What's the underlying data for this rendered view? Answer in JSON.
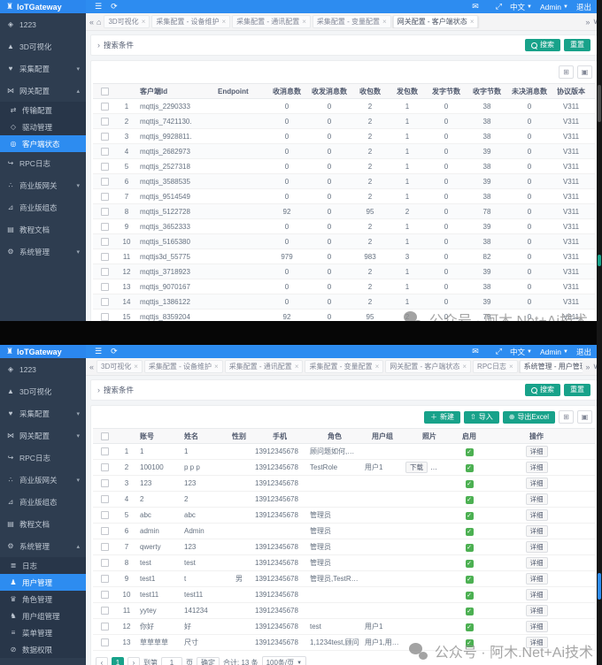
{
  "watermark": {
    "text": "公众号 · 阿木.Net+Ai技术"
  },
  "colors": {
    "primary": "#2d8cf0",
    "teal": "#18a28a",
    "enabled_green": "#4cb052",
    "sidebar": "#2e3d50"
  },
  "screens": [
    {
      "logo": "IoTGateway",
      "topbar": {
        "lang": "中文",
        "user": "Admin",
        "logout": "退出"
      },
      "tabs": [
        {
          "label": "3D可视化"
        },
        {
          "label": "采集配置 - 设备维护"
        },
        {
          "label": "采集配置 - 通讯配置"
        },
        {
          "label": "采集配置 - 变量配置"
        },
        {
          "label": "网关配置 - 客户端状态",
          "active": true
        }
      ],
      "sidebar": [
        {
          "name": "1223",
          "icon": "robot-icon",
          "label": "1223"
        },
        {
          "name": "3d-visualization",
          "icon": "cube-icon",
          "label": "3D可视化"
        },
        {
          "name": "collect-config",
          "icon": "collect-icon",
          "label": "采集配置",
          "arrow": "down"
        },
        {
          "name": "gateway-config",
          "icon": "gateway-icon",
          "label": "网关配置",
          "arrow": "up"
        },
        {
          "name": "transport-config",
          "icon": "transfer-icon",
          "label": "传输配置",
          "sub": true
        },
        {
          "name": "driver-management",
          "icon": "driver-icon",
          "label": "驱动管理",
          "sub": true
        },
        {
          "name": "client-status",
          "icon": "client-icon",
          "label": "客户端状态",
          "sub": true,
          "active": true
        },
        {
          "name": "rpc-log",
          "icon": "rpc-icon",
          "label": "RPC日志"
        },
        {
          "name": "business-gateway",
          "icon": "share-icon",
          "label": "商业版网关",
          "arrow": "down"
        },
        {
          "name": "business-scada",
          "icon": "chart-icon",
          "label": "商业版组态"
        },
        {
          "name": "tutorial-docs",
          "icon": "doc-icon",
          "label": "教程文档"
        },
        {
          "name": "system-management",
          "icon": "gear-icon",
          "label": "系统管理",
          "arrow": "down"
        }
      ],
      "search": {
        "label": "搜索条件",
        "search_btn": "搜索",
        "reset_btn": "重置"
      },
      "table": {
        "columns": [
          "客户端Id",
          "Endpoint",
          "收消息数",
          "收发消息数",
          "收包数",
          "发包数",
          "发字节数",
          "收字节数",
          "未决消息数",
          "协议版本"
        ],
        "rows": [
          [
            "mqttjs_2290333",
            "",
            "0",
            "0",
            "2",
            "1",
            "0",
            "38",
            "0",
            "V311"
          ],
          [
            "mqttjs_7421130.",
            "",
            "0",
            "0",
            "2",
            "1",
            "0",
            "38",
            "0",
            "V311"
          ],
          [
            "mqttjs_9928811.",
            "",
            "0",
            "0",
            "2",
            "1",
            "0",
            "38",
            "0",
            "V311"
          ],
          [
            "mqttjs_2682973",
            "",
            "0",
            "0",
            "2",
            "1",
            "0",
            "39",
            "0",
            "V311"
          ],
          [
            "mqttjs_2527318",
            "",
            "0",
            "0",
            "2",
            "1",
            "0",
            "38",
            "0",
            "V311"
          ],
          [
            "mqttjs_3588535",
            "",
            "0",
            "0",
            "2",
            "1",
            "0",
            "39",
            "0",
            "V311"
          ],
          [
            "mqttjs_9514549",
            "",
            "0",
            "0",
            "2",
            "1",
            "0",
            "38",
            "0",
            "V311"
          ],
          [
            "mqttjs_5122728",
            "",
            "92",
            "0",
            "95",
            "2",
            "0",
            "78",
            "0",
            "V311"
          ],
          [
            "mqttjs_3652333",
            "",
            "0",
            "0",
            "2",
            "1",
            "0",
            "39",
            "0",
            "V311"
          ],
          [
            "mqttjs_5165380",
            "",
            "0",
            "0",
            "2",
            "1",
            "0",
            "38",
            "0",
            "V311"
          ],
          [
            "mqttjs3d_55775",
            "",
            "979",
            "0",
            "983",
            "3",
            "0",
            "82",
            "0",
            "V311"
          ],
          [
            "mqttjs_3718923",
            "",
            "0",
            "0",
            "2",
            "1",
            "0",
            "39",
            "0",
            "V311"
          ],
          [
            "mqttjs_9070167",
            "",
            "0",
            "0",
            "2",
            "1",
            "0",
            "38",
            "0",
            "V311"
          ],
          [
            "mqttjs_1386122",
            "",
            "0",
            "0",
            "2",
            "1",
            "0",
            "39",
            "0",
            "V311"
          ],
          [
            "mqttjs_8359204",
            "",
            "92",
            "0",
            "95",
            "2",
            "0",
            "79",
            "0",
            "V311"
          ]
        ]
      }
    },
    {
      "logo": "IoTGateway",
      "topbar": {
        "lang": "中文",
        "user": "Admin",
        "logout": "退出"
      },
      "tabs": [
        {
          "label": "3D可视化"
        },
        {
          "label": "采集配置 - 设备维护"
        },
        {
          "label": "采集配置 - 通讯配置"
        },
        {
          "label": "采集配置 - 变量配置"
        },
        {
          "label": "网关配置 - 客户端状态"
        },
        {
          "label": "RPC日志"
        },
        {
          "label": "系统管理 - 用户管理",
          "active": true
        }
      ],
      "sidebar": [
        {
          "name": "1223",
          "icon": "robot-icon",
          "label": "1223"
        },
        {
          "name": "3d-visualization",
          "icon": "cube-icon",
          "label": "3D可视化"
        },
        {
          "name": "collect-config",
          "icon": "collect-icon",
          "label": "采集配置",
          "arrow": "down"
        },
        {
          "name": "gateway-config",
          "icon": "gateway-icon",
          "label": "网关配置",
          "arrow": "down"
        },
        {
          "name": "rpc-log",
          "icon": "rpc-icon",
          "label": "RPC日志"
        },
        {
          "name": "business-gateway",
          "icon": "share-icon",
          "label": "商业版网关",
          "arrow": "down"
        },
        {
          "name": "business-scada",
          "icon": "chart-icon",
          "label": "商业版组态"
        },
        {
          "name": "tutorial-docs",
          "icon": "doc-icon",
          "label": "教程文档"
        },
        {
          "name": "system-management",
          "icon": "gear-icon",
          "label": "系统管理",
          "arrow": "up"
        },
        {
          "name": "log",
          "icon": "log-icon",
          "label": "日志",
          "sub": true
        },
        {
          "name": "user-management",
          "icon": "user-icon",
          "label": "用户管理",
          "sub": true,
          "active": true
        },
        {
          "name": "role-management",
          "icon": "role-icon",
          "label": "角色管理",
          "sub": true
        },
        {
          "name": "user-group-management",
          "icon": "group-icon",
          "label": "用户组管理",
          "sub": true
        },
        {
          "name": "menu-management",
          "icon": "menu-icon",
          "label": "菜单管理",
          "sub": true
        },
        {
          "name": "data-permission",
          "icon": "perm-icon",
          "label": "数据权限",
          "sub": true
        }
      ],
      "search": {
        "label": "搜索条件",
        "search_btn": "搜索",
        "reset_btn": "重置"
      },
      "toolbar": {
        "new_btn": "新建",
        "import_btn": "导入",
        "export_btn": "导出Excel"
      },
      "table": {
        "columns": [
          "账号",
          "姓名",
          "性别",
          "手机",
          "角色",
          "用户组",
          "照片",
          "启用",
          "操作"
        ],
        "op_label": "详细",
        "rows": [
          {
            "account": "1",
            "name": "1",
            "gender": "",
            "phone": "13912345678",
            "roles": "顾问题如何,管理",
            "group": "",
            "photo": [],
            "enabled": true
          },
          {
            "account": "100100",
            "name": "p p p",
            "gender": "",
            "phone": "13912345678",
            "roles": "TestRole",
            "group": "用户1",
            "photo": [
              "下载",
              "预览"
            ],
            "enabled": true
          },
          {
            "account": "123",
            "name": "123",
            "gender": "",
            "phone": "13912345678",
            "roles": "",
            "group": "",
            "photo": [],
            "enabled": true
          },
          {
            "account": "2",
            "name": "2",
            "gender": "",
            "phone": "13912345678",
            "roles": "",
            "group": "",
            "photo": [],
            "enabled": true
          },
          {
            "account": "abc",
            "name": "abc",
            "gender": "",
            "phone": "13912345678",
            "roles": "管理员",
            "group": "",
            "photo": [],
            "enabled": true
          },
          {
            "account": "admin",
            "name": "Admin",
            "gender": "",
            "phone": "",
            "roles": "管理员",
            "group": "",
            "photo": [],
            "enabled": true
          },
          {
            "account": "qwerty",
            "name": "123",
            "gender": "",
            "phone": "13912345678",
            "roles": "管理员",
            "group": "",
            "photo": [],
            "enabled": true
          },
          {
            "account": "test",
            "name": "test",
            "gender": "",
            "phone": "13912345678",
            "roles": "管理员",
            "group": "",
            "photo": [],
            "enabled": true
          },
          {
            "account": "test1",
            "name": "t",
            "gender": "男",
            "phone": "13912345678",
            "roles": "管理员,TestRole",
            "group": "",
            "photo": [],
            "enabled": true
          },
          {
            "account": "test11",
            "name": "test11",
            "gender": "",
            "phone": "13912345678",
            "roles": "",
            "group": "",
            "photo": [],
            "enabled": true
          },
          {
            "account": "yytey",
            "name": "141234",
            "gender": "",
            "phone": "13912345678",
            "roles": "",
            "group": "",
            "photo": [],
            "enabled": true
          },
          {
            "account": "你好",
            "name": "好",
            "gender": "",
            "phone": "13912345678",
            "roles": "test",
            "group": "用户1",
            "photo": [],
            "enabled": true
          },
          {
            "account": "草草草草",
            "name": "尺寸",
            "gender": "",
            "phone": "13912345678",
            "roles": "1,1234test,顾问",
            "group": "用户1,用户2",
            "photo": [],
            "enabled": true
          }
        ]
      },
      "pagination": {
        "prev": "‹",
        "page": "1",
        "next": "›",
        "goto_prefix": "到第",
        "goto_value": "1",
        "goto_suffix": "页",
        "confirm_btn": "确定",
        "total": "合计: 13 条",
        "page_size": "100条/页"
      }
    }
  ]
}
